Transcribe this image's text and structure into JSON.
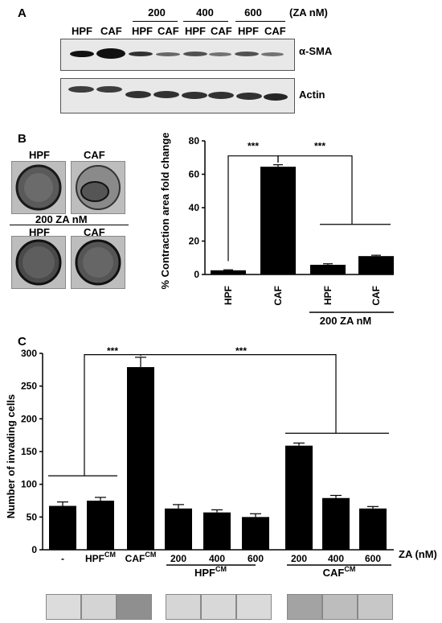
{
  "panelA": {
    "letter": "A",
    "dose_header": [
      "200",
      "400",
      "600"
    ],
    "zan_unit": "(ZA nM)",
    "lane_labels": [
      "HPF",
      "CAF",
      "HPF",
      "CAF",
      "HPF",
      "CAF",
      "HPF",
      "CAF"
    ],
    "blot1_label": "α-SMA",
    "blot2_label": "Actin"
  },
  "panelB": {
    "letter": "B",
    "well_labels_top": [
      "HPF",
      "CAF"
    ],
    "well_separator": "200 ZA nM",
    "well_labels_bottom": [
      "HPF",
      "CAF"
    ]
  },
  "panelC": {
    "letter": "C",
    "dose_label": "ZA (nM)",
    "group1": "HPF",
    "group2": "CAF",
    "superscript": "CM"
  },
  "chart_data": [
    {
      "type": "bar",
      "categories": [
        "HPF",
        "CAF",
        "HPF",
        "CAF"
      ],
      "values": [
        2.5,
        64.5,
        5.8,
        11
      ],
      "errors": [
        0.3,
        1.2,
        0.6,
        0.5
      ],
      "ylabel": "% Contraction area fold change",
      "ylim": [
        0,
        80
      ],
      "yticks": [
        0,
        20,
        40,
        60,
        80
      ],
      "group_label": "200  ZA nM",
      "significance": [
        "***",
        "***"
      ]
    },
    {
      "type": "bar",
      "categories": [
        "-",
        "HPF",
        "CAF",
        "200",
        "400",
        "600",
        "200",
        "400",
        "600"
      ],
      "values": [
        67,
        75,
        279,
        63,
        57,
        50,
        159,
        79,
        63
      ],
      "errors": [
        6,
        5,
        15,
        6,
        4,
        5,
        4,
        4,
        3
      ],
      "ylabel": "Number of invading cells",
      "ylim": [
        0,
        300
      ],
      "yticks": [
        0,
        50,
        100,
        150,
        200,
        250,
        300
      ],
      "significance": [
        "***",
        "***"
      ]
    }
  ]
}
